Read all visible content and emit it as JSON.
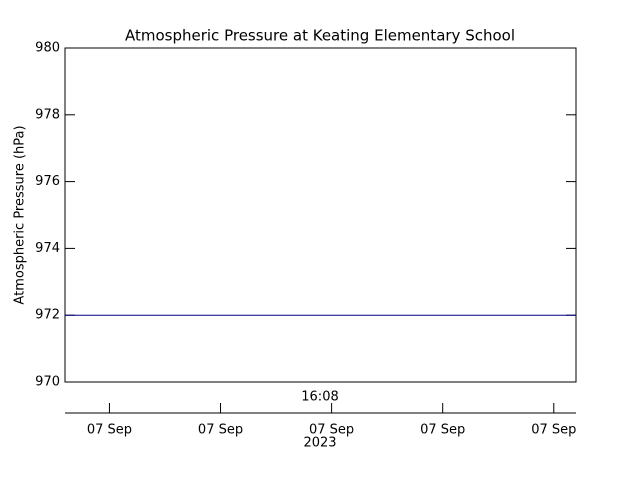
{
  "chart_data": {
    "type": "line",
    "title": "Atmospheric Pressure at Keating Elementary School",
    "y_label": "Atmospheric Pressure (hPa)",
    "x_center_label": "16:08",
    "x_year_label": "2023",
    "x": [
      0,
      4.6
    ],
    "series": [
      {
        "name": "Atmospheric Pressure",
        "color": "#000080",
        "values": [
          972,
          972
        ]
      }
    ],
    "xlim": [
      0,
      4.6
    ],
    "xticks": [
      {
        "value": 0.4,
        "label": "07 Sep"
      },
      {
        "value": 1.4,
        "label": "07 Sep"
      },
      {
        "value": 2.4,
        "label": "07 Sep"
      },
      {
        "value": 3.4,
        "label": "07 Sep"
      },
      {
        "value": 4.4,
        "label": "07 Sep"
      }
    ],
    "ylim": [
      970,
      980
    ],
    "yticks": [
      970,
      972,
      974,
      976,
      978,
      980
    ],
    "grid": false
  }
}
